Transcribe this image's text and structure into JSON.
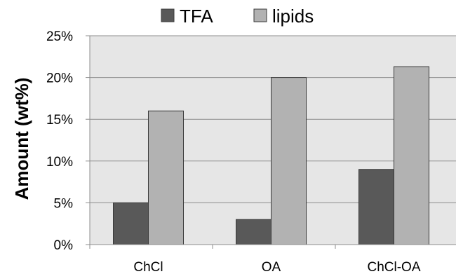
{
  "chart_data": {
    "type": "bar",
    "title": "",
    "xlabel": "",
    "ylabel": "Amount (wt%)",
    "categories": [
      "ChCl",
      "OA",
      "ChCl-OA"
    ],
    "series": [
      {
        "name": "TFA",
        "values": [
          5,
          3,
          9
        ],
        "color": "#595959"
      },
      {
        "name": "lipids",
        "values": [
          16,
          20,
          21.3
        ],
        "color": "#b2b2b2"
      }
    ],
    "ylim": [
      0,
      25
    ],
    "y_ticks": [
      "0%",
      "5%",
      "10%",
      "15%",
      "20%",
      "25%"
    ],
    "grid": "horizontal",
    "legend": "top",
    "plot_background": "#e6e6e6",
    "grid_color": "#8c8c8c"
  }
}
